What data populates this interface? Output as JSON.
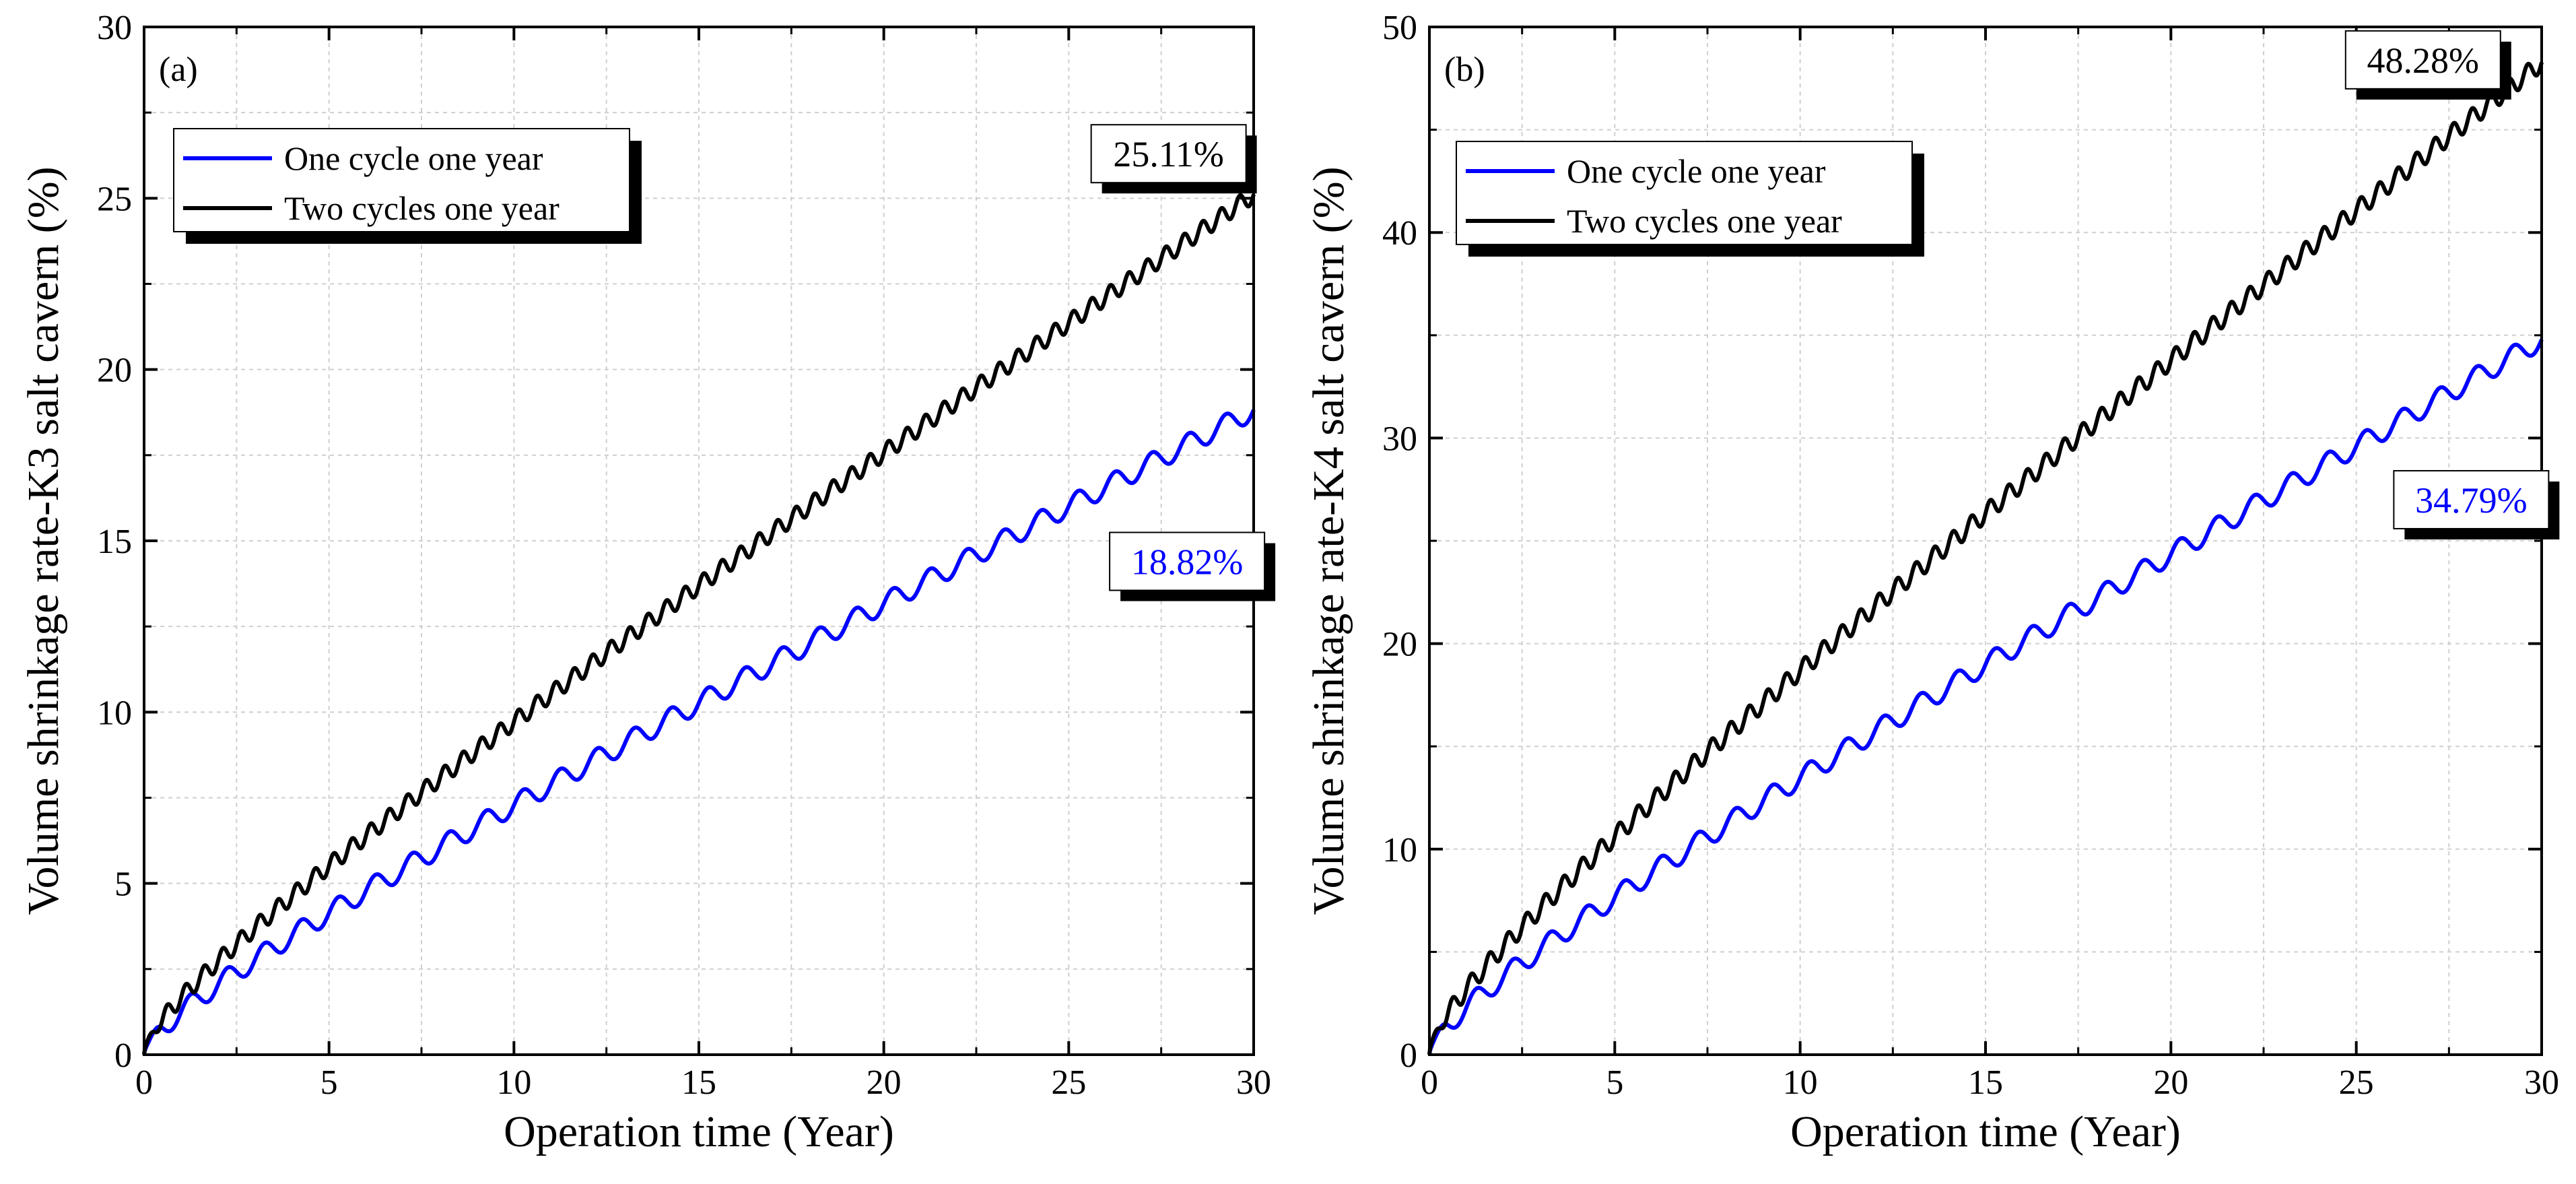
{
  "chart_data": [
    {
      "type": "line",
      "panel_label": "(a)",
      "xlabel": "Operation time (Year)",
      "ylabel": "Volume shrinkage rate-K3 salt cavern (%)",
      "xlim": [
        0,
        30
      ],
      "ylim": [
        0,
        30
      ],
      "xticks": [
        "0",
        "5",
        "10",
        "15",
        "20",
        "25",
        "30"
      ],
      "yticks": [
        "0",
        "5",
        "10",
        "15",
        "20",
        "25",
        "30"
      ],
      "grid": true,
      "legend_position": "top-left",
      "series": [
        {
          "name": "One cycle one year",
          "color": "#0000ff",
          "cycles_per_year": 1,
          "start": [
            0,
            0
          ],
          "end": [
            30,
            18.82
          ],
          "oscillation": 0.3
        },
        {
          "name": "Two cycles one year",
          "color": "#000000",
          "cycles_per_year": 2,
          "start": [
            0,
            0
          ],
          "end": [
            30,
            25.11
          ],
          "oscillation": 0.25
        }
      ],
      "annotations": [
        {
          "text": "25.11%",
          "color": "#000000",
          "x": 27.7,
          "y": 26.3
        },
        {
          "text": "18.82%",
          "color": "#0000ff",
          "x": 28.2,
          "y": 14.4
        }
      ]
    },
    {
      "type": "line",
      "panel_label": "(b)",
      "xlabel": "Operation time (Year)",
      "ylabel": "Volume shrinkage rate-K4 salt cavern (%)",
      "xlim": [
        0,
        30
      ],
      "ylim": [
        0,
        50
      ],
      "xticks": [
        "0",
        "5",
        "10",
        "15",
        "20",
        "25",
        "30"
      ],
      "yticks": [
        "0",
        "10",
        "20",
        "30",
        "40",
        "50"
      ],
      "grid": true,
      "legend_position": "top-left",
      "series": [
        {
          "name": "One cycle one year",
          "color": "#0000ff",
          "cycles_per_year": 1,
          "start": [
            0,
            0
          ],
          "end": [
            30,
            34.79
          ],
          "oscillation": 0.5
        },
        {
          "name": "Two cycles one year",
          "color": "#000000",
          "cycles_per_year": 2,
          "start": [
            0,
            0
          ],
          "end": [
            30,
            48.28
          ],
          "oscillation": 0.45
        }
      ],
      "annotations": [
        {
          "text": "48.28%",
          "color": "#000000",
          "x": 26.8,
          "y": 48.4
        },
        {
          "text": "34.79%",
          "color": "#0000ff",
          "x": 28.1,
          "y": 27.0
        }
      ]
    }
  ]
}
